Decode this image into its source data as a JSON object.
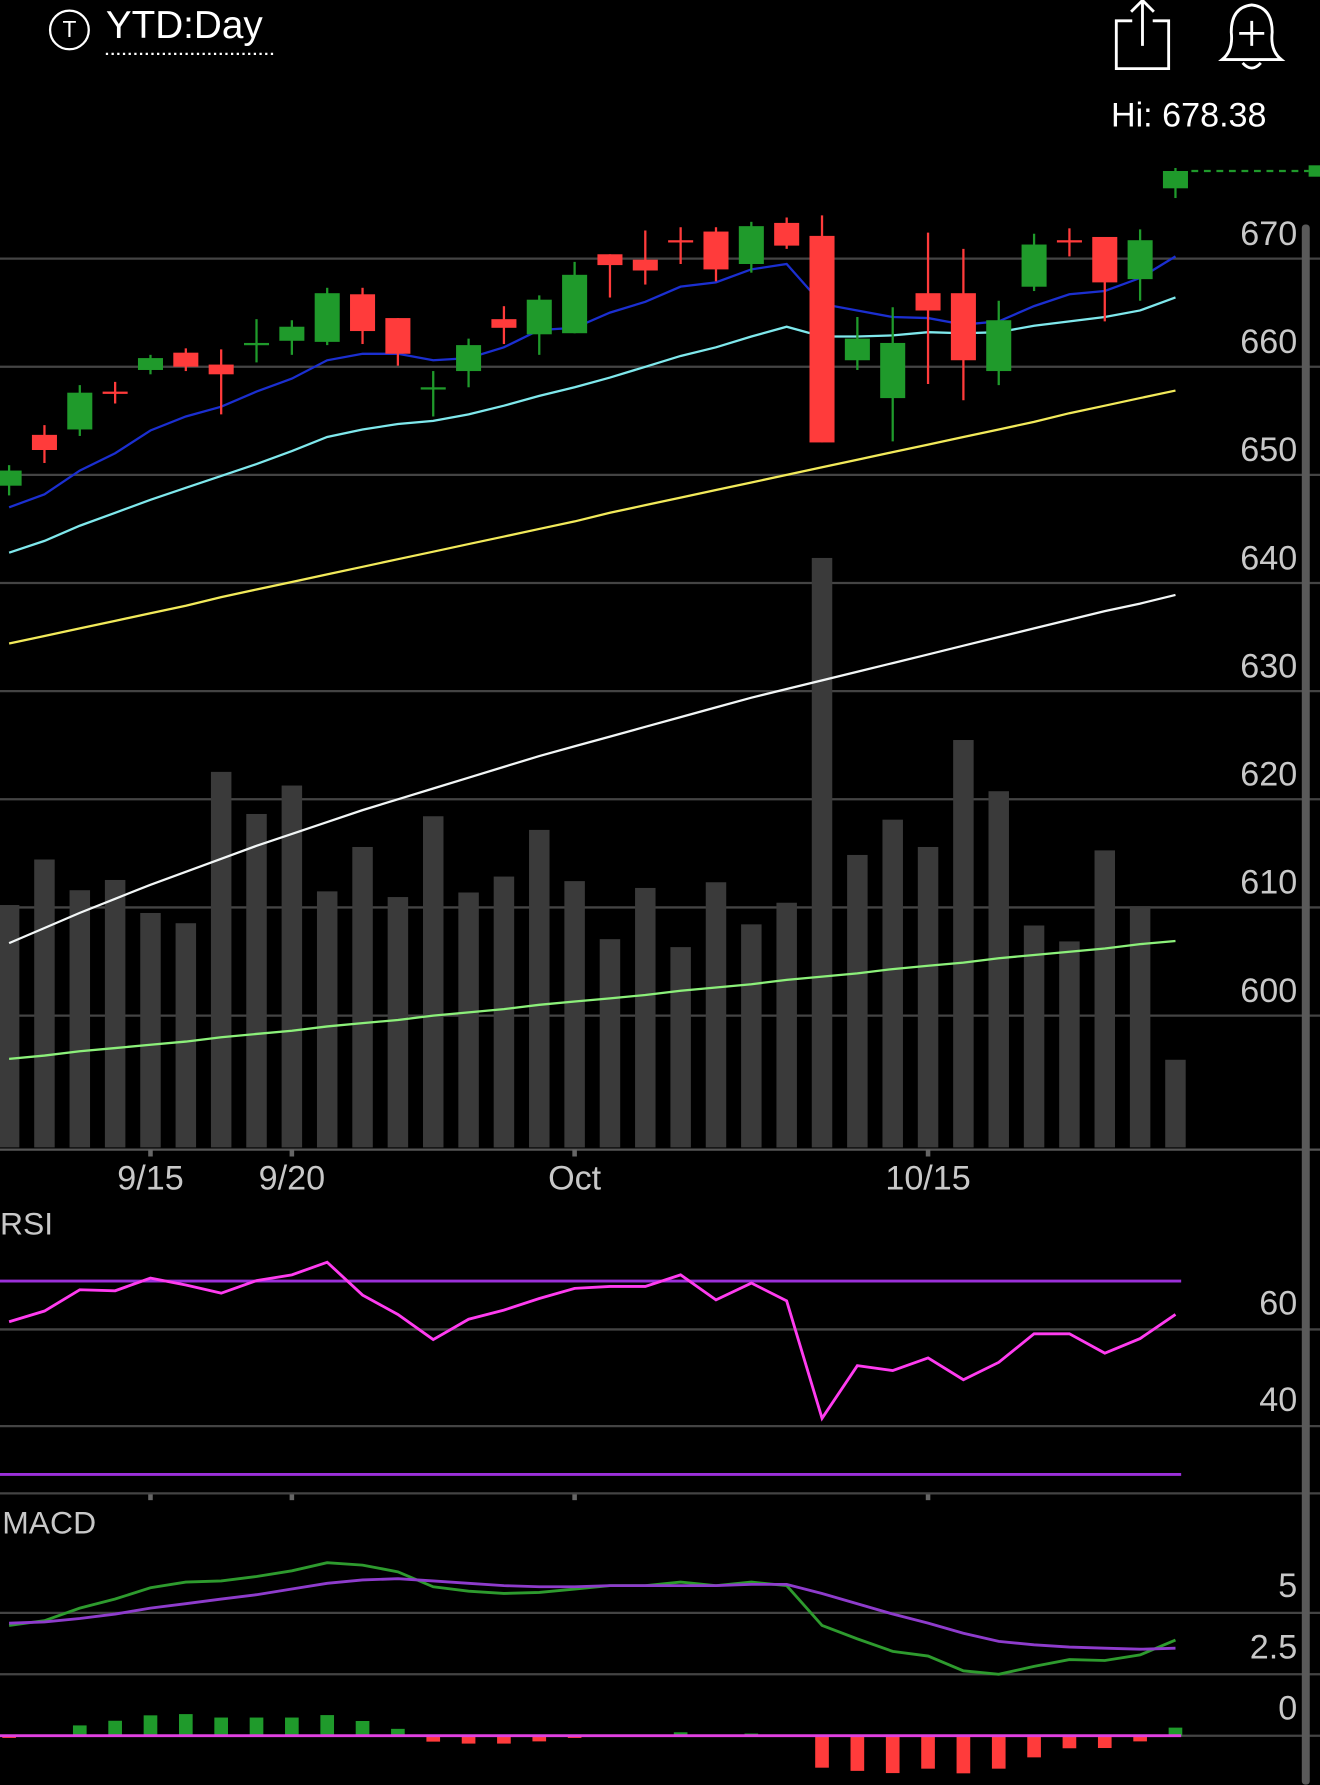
{
  "header": {
    "icon_letter": "T",
    "title": "YTD:Day"
  },
  "chart_data": [
    {
      "type": "candlestick",
      "high_label": "Hi: 678.38",
      "categories": [
        null,
        null,
        null,
        null,
        "9/15",
        null,
        null,
        null,
        "9/20",
        null,
        null,
        null,
        null,
        null,
        null,
        null,
        "Oct",
        null,
        null,
        null,
        null,
        null,
        null,
        null,
        null,
        null,
        "10/15",
        null,
        null,
        null,
        null,
        null,
        null,
        null
      ],
      "open": [
        649.0,
        653.7,
        654.2,
        657.7,
        659.7,
        661.3,
        660.2,
        662.0,
        662.4,
        662.3,
        666.7,
        664.5,
        657.9,
        659.6,
        664.4,
        663.0,
        663.1,
        670.4,
        669.9,
        671.7,
        672.5,
        669.5,
        673.3,
        672.1,
        660.6,
        657.1,
        666.8,
        666.8,
        659.6,
        667.4,
        671.7,
        672.0,
        668.1,
        676.5
      ],
      "high": [
        650.9,
        654.6,
        658.3,
        658.6,
        661.1,
        661.7,
        661.6,
        664.4,
        664.3,
        667.3,
        667.3,
        664.5,
        659.6,
        662.6,
        665.6,
        666.6,
        669.7,
        670.4,
        672.6,
        672.9,
        672.9,
        673.4,
        673.8,
        674.0,
        664.6,
        665.5,
        672.4,
        670.9,
        666.1,
        672.3,
        672.8,
        672.0,
        672.7,
        678.38
      ],
      "low": [
        648.1,
        651.1,
        653.6,
        656.6,
        659.3,
        659.6,
        655.6,
        660.4,
        661.1,
        662.0,
        662.1,
        660.1,
        655.4,
        658.1,
        662.1,
        661.1,
        663.1,
        666.4,
        667.6,
        669.5,
        667.9,
        668.7,
        670.9,
        653.0,
        659.7,
        653.1,
        658.4,
        656.9,
        658.3,
        667.0,
        670.2,
        664.2,
        666.1,
        675.6
      ],
      "close": [
        650.4,
        652.3,
        657.6,
        657.5,
        660.8,
        660.0,
        659.3,
        662.2,
        663.7,
        666.8,
        663.3,
        661.2,
        658.1,
        662.0,
        663.6,
        666.2,
        668.5,
        669.4,
        668.9,
        671.5,
        669.0,
        673.0,
        671.2,
        653.0,
        662.6,
        662.2,
        665.2,
        660.6,
        664.3,
        671.3,
        671.5,
        667.8,
        671.7,
        678.1
      ],
      "up_color": "#1f9a2b",
      "down_color": "#ff3b3b",
      "overlays": [
        {
          "color": "#1b2fd0",
          "values": [
            647.0,
            648.2,
            650.4,
            652.0,
            654.1,
            655.4,
            656.3,
            657.7,
            658.9,
            660.6,
            661.2,
            661.2,
            660.6,
            660.8,
            661.8,
            663.4,
            663.6,
            665.0,
            666.0,
            667.4,
            667.8,
            669.0,
            669.5,
            665.8,
            665.2,
            664.6,
            664.5,
            663.9,
            664.2,
            665.6,
            666.7,
            667.0,
            668.2,
            670.2
          ]
        },
        {
          "color": "#7fe8ec",
          "values": [
            642.8,
            643.9,
            645.3,
            646.5,
            647.7,
            648.8,
            649.9,
            651.0,
            652.2,
            653.5,
            654.2,
            654.7,
            655.0,
            655.6,
            656.4,
            657.3,
            658.1,
            659.0,
            660.0,
            661.0,
            661.8,
            662.8,
            663.7,
            662.8,
            662.8,
            662.9,
            663.2,
            663.1,
            663.2,
            663.8,
            664.2,
            664.6,
            665.2,
            666.4
          ]
        },
        {
          "color": "#f2ea5a",
          "values": [
            634.4,
            635.1,
            635.8,
            636.5,
            637.2,
            637.9,
            638.7,
            639.4,
            640.1,
            640.8,
            641.5,
            642.2,
            642.9,
            643.6,
            644.3,
            645.0,
            645.7,
            646.5,
            647.2,
            647.9,
            648.6,
            649.3,
            650.0,
            650.7,
            651.4,
            652.1,
            652.8,
            653.5,
            654.2,
            654.9,
            655.7,
            656.4,
            657.1,
            657.8
          ]
        },
        {
          "color": "#f2f6f6",
          "values": [
            606.7,
            608.1,
            609.5,
            610.8,
            612.1,
            613.3,
            614.5,
            615.7,
            616.8,
            617.9,
            619.0,
            620.0,
            621.0,
            622.0,
            623.0,
            624.0,
            624.9,
            625.8,
            626.7,
            627.6,
            628.5,
            629.4,
            630.2,
            631.0,
            631.8,
            632.6,
            633.4,
            634.2,
            635.0,
            635.8,
            636.6,
            637.4,
            638.1,
            638.9
          ]
        },
        {
          "color": "#8cf07a",
          "values": [
            596.0,
            596.3,
            596.7,
            597.0,
            597.3,
            597.6,
            598.0,
            598.3,
            598.6,
            599.0,
            599.3,
            599.6,
            600.0,
            600.3,
            600.6,
            601.0,
            601.3,
            601.6,
            601.9,
            602.3,
            602.6,
            602.9,
            603.3,
            603.6,
            603.9,
            604.3,
            604.6,
            604.9,
            605.3,
            605.6,
            605.9,
            606.2,
            606.6,
            606.9
          ]
        }
      ],
      "volume": {
        "color": "#3a3a3a",
        "ylim": [
          0,
          600
        ],
        "values": [
          213,
          253,
          226,
          235,
          206,
          197,
          330,
          293,
          318,
          225,
          264,
          220,
          291,
          224,
          238,
          279,
          234,
          183,
          228,
          176,
          233,
          196,
          215,
          518,
          257,
          288,
          264,
          358,
          313,
          195,
          181,
          261,
          212,
          77
        ]
      },
      "ylim": [
        587.6,
        680.2
      ],
      "yticks": [
        600,
        610,
        620,
        630,
        640,
        650,
        660,
        670
      ],
      "grid": true
    },
    {
      "type": "line",
      "title": "RSI",
      "series": [
        {
          "color": "#ff3cf0",
          "values": [
            61.6,
            63.8,
            68.2,
            68.0,
            70.6,
            69.2,
            67.5,
            70.1,
            71.3,
            73.9,
            67.1,
            63.1,
            57.9,
            62.1,
            64.0,
            66.4,
            68.5,
            68.9,
            68.9,
            71.3,
            66.1,
            69.6,
            65.9,
            41.6,
            52.5,
            51.5,
            54.1,
            49.6,
            53.2,
            59.1,
            59.1,
            55.1,
            58.1,
            63.1
          ]
        }
      ],
      "reference_lines": [
        70,
        30
      ],
      "reference_color": "#9b30d9",
      "ylim": [
        26.1,
        78.35
      ],
      "yticks": [
        40,
        60
      ],
      "grid": true
    },
    {
      "type": "macd",
      "title": "MACD",
      "series": [
        {
          "color": "#2e9b2e",
          "values": [
            4.49,
            4.68,
            5.19,
            5.56,
            6.02,
            6.25,
            6.3,
            6.48,
            6.71,
            7.04,
            6.94,
            6.67,
            6.06,
            5.88,
            5.79,
            5.83,
            5.97,
            6.11,
            6.11,
            6.25,
            6.11,
            6.25,
            6.11,
            4.49,
            3.94,
            3.43,
            3.24,
            2.64,
            2.5,
            2.82,
            3.1,
            3.06,
            3.29,
            3.89
          ]
        },
        {
          "color": "#8e3ccc",
          "values": [
            4.58,
            4.63,
            4.77,
            4.95,
            5.19,
            5.37,
            5.56,
            5.74,
            5.97,
            6.2,
            6.34,
            6.39,
            6.3,
            6.2,
            6.11,
            6.06,
            6.06,
            6.11,
            6.11,
            6.11,
            6.11,
            6.16,
            6.16,
            5.79,
            5.37,
            4.95,
            4.58,
            4.17,
            3.84,
            3.7,
            3.61,
            3.56,
            3.52,
            3.56
          ]
        }
      ],
      "histogram": {
        "up_color": "#1f9a2b",
        "down_color": "#ff3b3b",
        "values": [
          -0.09,
          0.05,
          0.42,
          0.61,
          0.83,
          0.88,
          0.74,
          0.74,
          0.74,
          0.84,
          0.6,
          0.28,
          -0.24,
          -0.32,
          -0.32,
          -0.23,
          -0.09,
          0,
          0,
          0.14,
          0,
          0.09,
          -0.05,
          -1.3,
          -1.43,
          -1.52,
          -1.34,
          -1.53,
          -1.34,
          -0.88,
          -0.51,
          -0.5,
          -0.23,
          0.33
        ]
      },
      "zero_color": "#e040e0",
      "ylim": [
        -1.99,
        9.03
      ],
      "yticks": [
        0,
        2.5,
        5
      ],
      "grid": true
    }
  ]
}
